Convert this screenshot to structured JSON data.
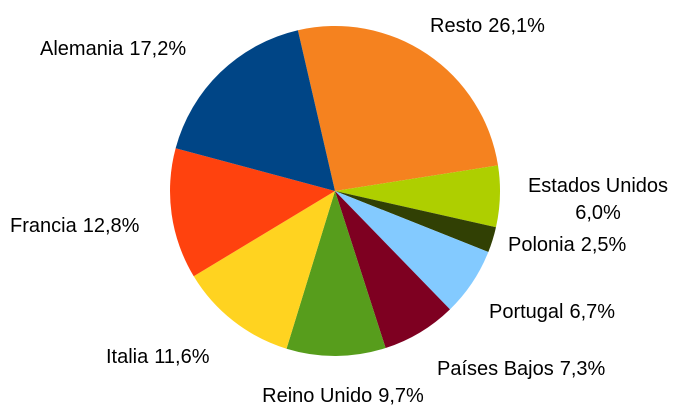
{
  "chart_data": {
    "type": "pie",
    "categories": [
      "Resto",
      "Estados Unidos",
      "Polonia",
      "Portugal",
      "Países Bajos",
      "Reino Unido",
      "Italia",
      "Francia",
      "Alemania"
    ],
    "values": [
      26.1,
      6.0,
      2.5,
      6.7,
      7.3,
      9.7,
      11.6,
      12.8,
      17.2
    ],
    "value_labels": [
      "26,1%",
      "6,0%",
      "2,5%",
      "6,7%",
      "7,3%",
      "9,7%",
      "11,6%",
      "12,8%",
      "17,2%"
    ],
    "colors": [
      "#f5821f",
      "#aecf00",
      "#314004",
      "#83caff",
      "#7e0021",
      "#579d1c",
      "#ffd320",
      "#ff420e",
      "#004586"
    ]
  }
}
